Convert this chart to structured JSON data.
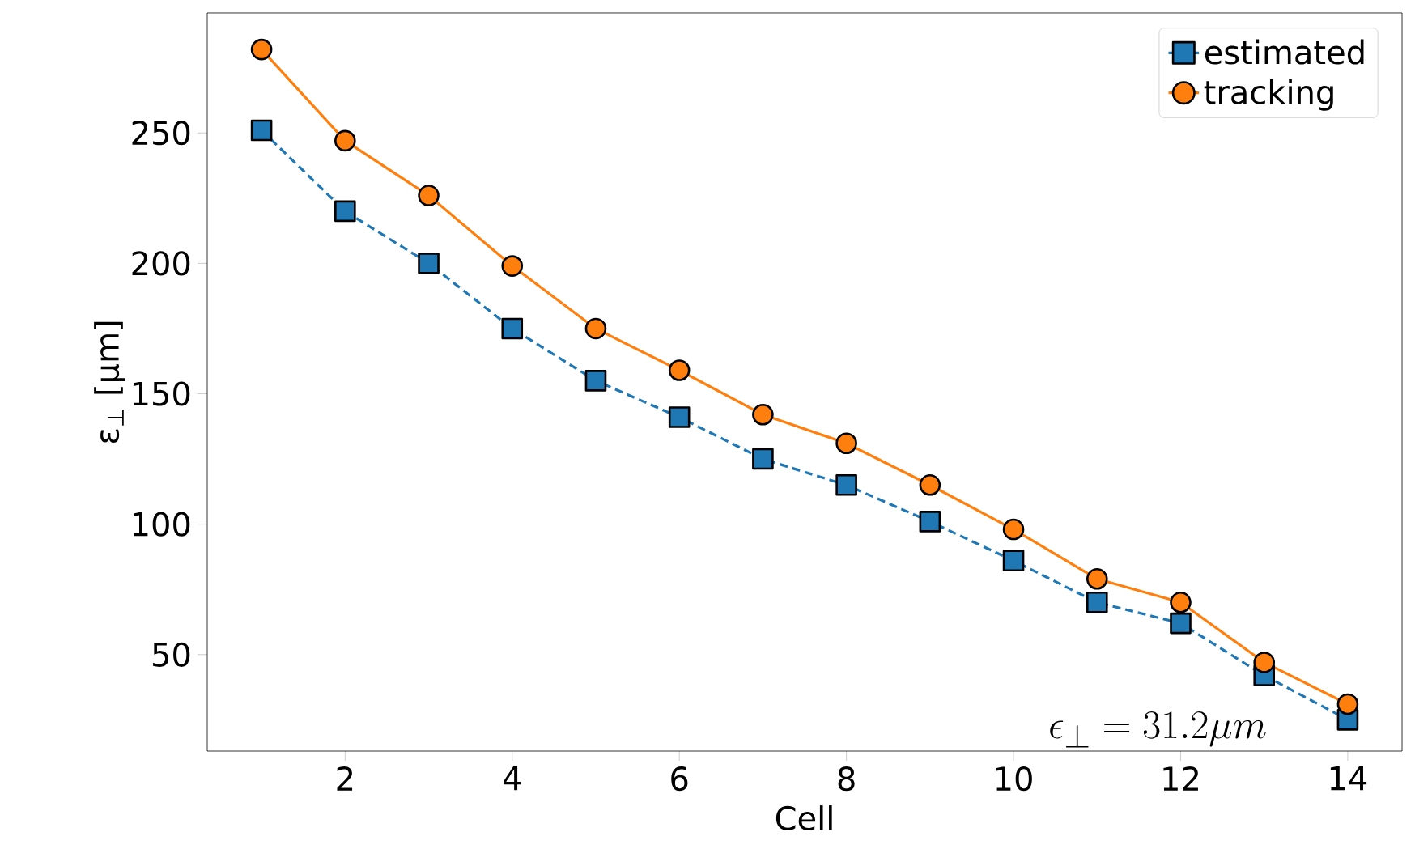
{
  "chart_data": {
    "type": "line",
    "xlabel": "Cell",
    "ylabel": "ε$_{⊥}$ [μm]",
    "x": [
      1,
      2,
      3,
      4,
      5,
      6,
      7,
      8,
      9,
      10,
      11,
      12,
      13,
      14
    ],
    "series": [
      {
        "name": "estimated",
        "color": "#1f77b4",
        "marker": "square",
        "line_style": "dashed",
        "values": [
          251,
          220,
          200,
          175,
          155,
          141,
          125,
          115,
          101,
          86,
          70,
          62,
          42,
          25
        ]
      },
      {
        "name": "tracking",
        "color": "#ff7f0e",
        "marker": "circle",
        "line_style": "solid",
        "values": [
          282,
          247,
          226,
          199,
          175,
          159,
          142,
          131,
          115,
          98,
          79,
          70,
          47,
          31
        ]
      }
    ],
    "annotations": [
      "\\epsilon_\\perp = 31.2\\mu m"
    ],
    "xlim": [
      0.35,
      14.65
    ],
    "ylim": [
      13,
      296
    ],
    "xticks": [
      2,
      4,
      6,
      8,
      10,
      12,
      14
    ],
    "yticks": [
      50,
      100,
      150,
      200,
      250
    ],
    "legend": "top right",
    "grid": false
  }
}
